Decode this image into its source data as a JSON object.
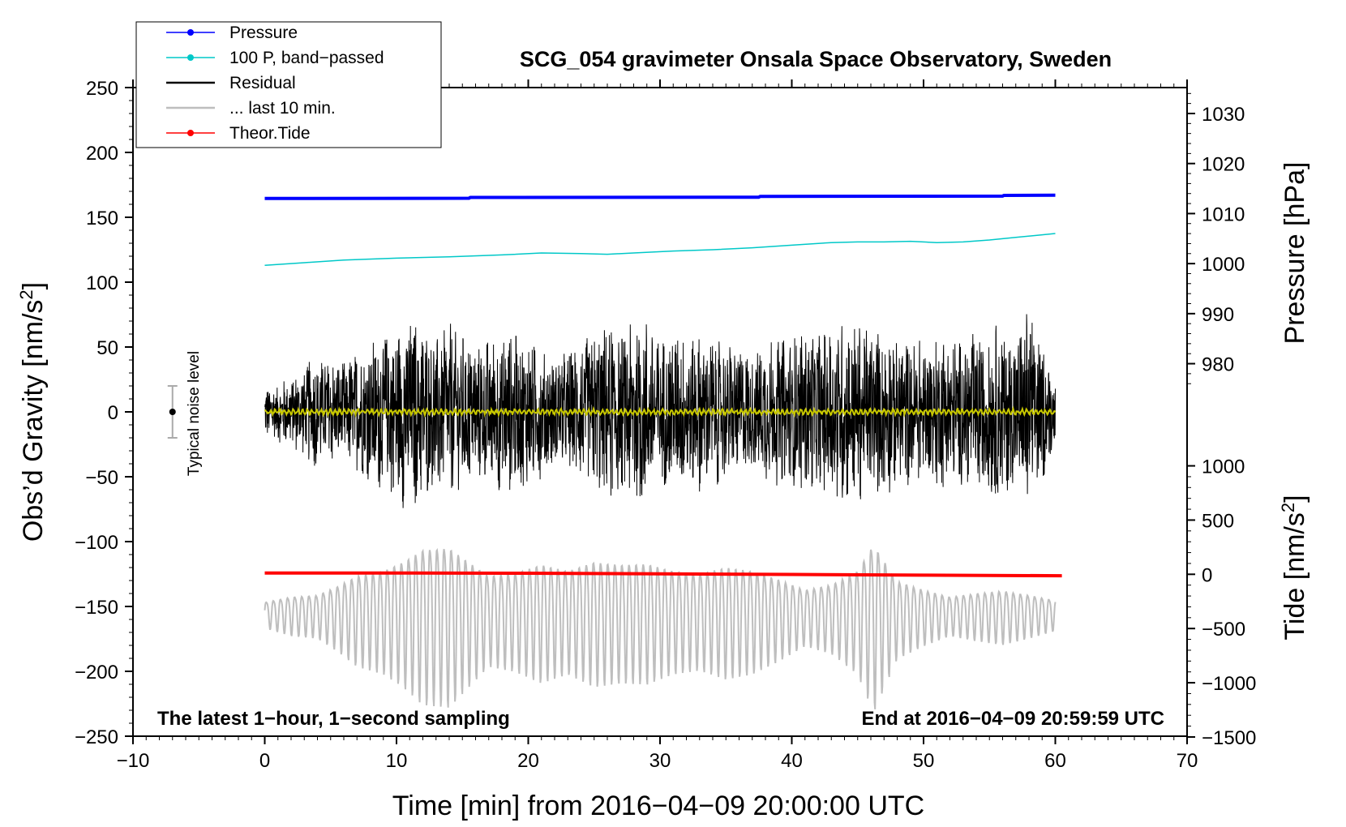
{
  "chart_data": {
    "type": "line",
    "title": "SCG_054 gravimeter Onsala Space Observatory, Sweden",
    "xlabel": "Time [min] from 2016−04−09 20:00:00 UTC",
    "ylabel": "Obs’d Gravity [nm/s",
    "ylabel_sup": "2",
    "ylabel_close": "]",
    "xlim": [
      -10,
      70
    ],
    "ylim": [
      -250,
      250
    ],
    "x_ticks": [
      -10,
      0,
      10,
      20,
      30,
      40,
      50,
      60,
      70
    ],
    "x_tick_labels": [
      "−10",
      "0",
      "10",
      "20",
      "30",
      "40",
      "50",
      "60",
      "70"
    ],
    "y_ticks": [
      250,
      200,
      150,
      100,
      50,
      0,
      -50,
      -100,
      -150,
      -200,
      -250
    ],
    "y_tick_labels": [
      "250",
      "200",
      "150",
      "100",
      "50",
      "0",
      "−50",
      "−100",
      "−150",
      "−200",
      "−250"
    ],
    "right_axis_pressure": {
      "label": "Pressure [hPa]",
      "ticks": [
        1030,
        1020,
        1010,
        1000,
        990,
        980
      ],
      "tick_labels": [
        "1030",
        "1020",
        "1010",
        "1000",
        "990",
        "980"
      ],
      "ref_value": 1000,
      "ref_gravity": 114.3,
      "scale_gravity_per_hpa": 3.857
    },
    "right_axis_tide": {
      "label": "Tide [nm/s",
      "label_sup": "2",
      "label_close": "]",
      "ticks": [
        1000,
        500,
        0,
        -500,
        -1000,
        -1500
      ],
      "tick_labels": [
        "1000",
        "500",
        "0",
        "−500",
        "−1000",
        "−1500"
      ],
      "ref_value": 0,
      "ref_gravity": -125.2,
      "scale_gravity_per_unit": 0.0836
    },
    "series": [
      {
        "name": "Pressure",
        "color": "#0000ff",
        "x": [
          0,
          15.5,
          15.6,
          37.5,
          37.6,
          56,
          56.1,
          60
        ],
        "values": [
          164.5,
          164.7,
          165.3,
          165.5,
          166.1,
          166.3,
          166.9,
          167
        ]
      },
      {
        "name": "100 P, band−passed",
        "color": "#00c8c8",
        "x": [
          0,
          3,
          6,
          10,
          14,
          18,
          21,
          24,
          26,
          28,
          31,
          34,
          37,
          40,
          43,
          45,
          47,
          49,
          51,
          53,
          55,
          57,
          59,
          60
        ],
        "values": [
          113,
          115,
          117,
          118.5,
          119.5,
          121,
          122.5,
          122,
          121.5,
          122.5,
          124,
          125,
          126.5,
          128.5,
          130.5,
          131,
          131,
          131.5,
          130.5,
          131,
          132.5,
          134.5,
          136.5,
          137.5
        ]
      },
      {
        "name": "Residual",
        "color": "#000000",
        "x_start": 0,
        "x_end": 60,
        "envelope_x": [
          0,
          2,
          4,
          6,
          8,
          9.5,
          11,
          12.5,
          14,
          16,
          18,
          20,
          22,
          24,
          26,
          27,
          28.7,
          29.5,
          31,
          33,
          35,
          37,
          38,
          40,
          42,
          44,
          46,
          48,
          50,
          52,
          53,
          55,
          57,
          58,
          60
        ],
        "envelope_amplitude": [
          20,
          28,
          45,
          40,
          55,
          70,
          78,
          66,
          70,
          55,
          65,
          58,
          45,
          55,
          72,
          62,
          85,
          58,
          65,
          62,
          55,
          50,
          56,
          60,
          65,
          72,
          68,
          62,
          56,
          62,
          56,
          70,
          66,
          86,
          24
        ]
      },
      {
        "name": "... last 10 min.",
        "color": "#bebebe",
        "x_start": 0,
        "x_end": 60,
        "center": -155,
        "envelope_x": [
          0,
          2,
          4,
          5.5,
          7,
          9,
          10.5,
          12,
          14,
          15.5,
          17,
          19,
          21,
          23,
          25,
          27,
          29,
          31,
          33,
          35,
          37,
          39,
          41,
          43,
          45,
          46.2,
          48,
          50,
          52,
          54,
          56,
          58,
          60
        ],
        "envelope_amplitude": [
          12,
          18,
          20,
          30,
          42,
          48,
          58,
          72,
          74,
          58,
          42,
          46,
          55,
          48,
          58,
          55,
          56,
          48,
          45,
          52,
          48,
          38,
          26,
          32,
          48,
          78,
          36,
          26,
          18,
          22,
          25,
          20,
          14
        ]
      },
      {
        "name": "Theor.Tide",
        "color": "#ff0000",
        "x": [
          0,
          10,
          20,
          30,
          40,
          50,
          60.5
        ],
        "values": [
          -124.2,
          -124.2,
          -124.4,
          -124.8,
          -125.3,
          -125.9,
          -126.3
        ]
      },
      {
        "name": "Noise-filtered residual",
        "color": "#c8c800",
        "x_start": 0,
        "x_end": 60,
        "amplitude": 2.5
      }
    ],
    "legend": {
      "location": "top-left",
      "entries": [
        {
          "label": "Pressure",
          "color": "#0000ff",
          "marker": true
        },
        {
          "label": "100 P, band−passed",
          "color": "#00c8c8",
          "marker": true
        },
        {
          "label": "Residual",
          "color": "#000000",
          "marker": false
        },
        {
          "label": "... last 10 min.",
          "color": "#bebebe",
          "marker": false
        },
        {
          "label": "Theor.Tide",
          "color": "#ff0000",
          "marker": true
        }
      ]
    },
    "noise_indicator": {
      "label": "Typical noise level",
      "x": -7,
      "center": 0,
      "low": -20,
      "high": 20
    },
    "annotations": {
      "bottom_left": "The latest 1−hour, 1−second sampling",
      "bottom_right": "End at 2016−04−09 20:59:59 UTC"
    }
  }
}
